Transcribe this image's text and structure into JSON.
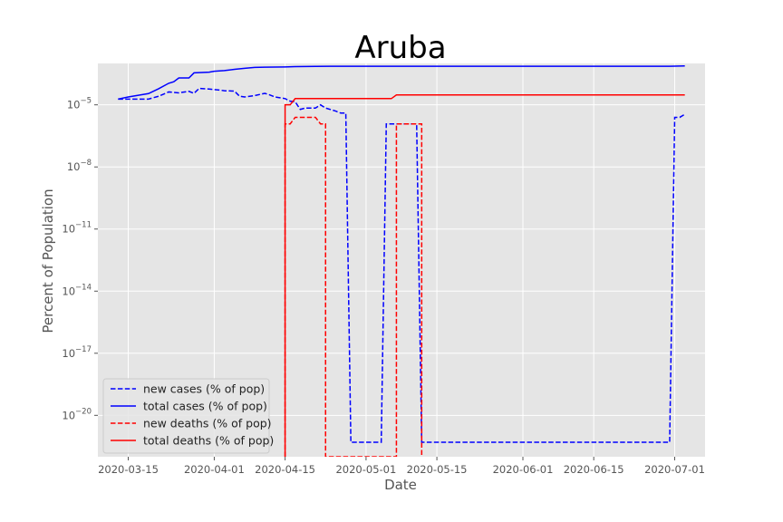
{
  "chart_data": {
    "type": "line",
    "title": "Aruba",
    "xlabel": "Date",
    "ylabel": "Percent of Population",
    "yscale": "log",
    "ylim": [
      1e-22,
      0.001
    ],
    "xlim": [
      "2020-03-09",
      "2020-07-07"
    ],
    "grid": true,
    "style": "ggplot",
    "legend_position": "lower-left",
    "x_ticks": [
      "2020-03-15",
      "2020-04-01",
      "2020-04-15",
      "2020-05-01",
      "2020-05-15",
      "2020-06-01",
      "2020-06-15",
      "2020-07-01"
    ],
    "y_ticks": [
      {
        "value": 1e-20,
        "base": "10",
        "exp": "−20"
      },
      {
        "value": 1e-17,
        "base": "10",
        "exp": "−17"
      },
      {
        "value": 1e-14,
        "base": "10",
        "exp": "−14"
      },
      {
        "value": 1e-11,
        "base": "10",
        "exp": "−11"
      },
      {
        "value": 1e-08,
        "base": "10",
        "exp": "−8"
      },
      {
        "value": 1e-05,
        "base": "10",
        "exp": "−5"
      }
    ],
    "series": [
      {
        "name": "new cases (% of pop)",
        "color": "#0000ff",
        "dash": "dashed",
        "points": [
          [
            "2020-03-13",
            1.9e-05
          ],
          [
            "2020-03-14",
            1.9e-05
          ],
          [
            "2020-03-17",
            1.9e-05
          ],
          [
            "2020-03-19",
            1.9e-05
          ],
          [
            "2020-03-21",
            2.6e-05
          ],
          [
            "2020-03-23",
            4.2e-05
          ],
          [
            "2020-03-25",
            3.8e-05
          ],
          [
            "2020-03-27",
            4.5e-05
          ],
          [
            "2020-03-28",
            3.6e-05
          ],
          [
            "2020-03-29",
            6.2e-05
          ],
          [
            "2020-03-31",
            5.8e-05
          ],
          [
            "2020-04-02",
            5.2e-05
          ],
          [
            "2020-04-03",
            4.8e-05
          ],
          [
            "2020-04-05",
            4.6e-05
          ],
          [
            "2020-04-06",
            2.6e-05
          ],
          [
            "2020-04-07",
            2.4e-05
          ],
          [
            "2020-04-09",
            2.8e-05
          ],
          [
            "2020-04-11",
            3.6e-05
          ],
          [
            "2020-04-12",
            3e-05
          ],
          [
            "2020-04-13",
            2.4e-05
          ],
          [
            "2020-04-15",
            2e-05
          ],
          [
            "2020-04-16",
            1.5e-05
          ],
          [
            "2020-04-17",
            1.4e-05
          ],
          [
            "2020-04-18",
            6e-06
          ],
          [
            "2020-04-19",
            7e-06
          ],
          [
            "2020-04-21",
            7e-06
          ],
          [
            "2020-04-22",
            1e-05
          ],
          [
            "2020-04-23",
            7e-06
          ],
          [
            "2020-04-25",
            5e-06
          ],
          [
            "2020-04-26",
            4e-06
          ],
          [
            "2020-04-27",
            4e-06
          ],
          [
            "2020-04-28",
            5e-22
          ],
          [
            "2020-05-04",
            5e-22
          ],
          [
            "2020-05-05",
            1.2e-06
          ],
          [
            "2020-05-11",
            1.2e-06
          ],
          [
            "2020-05-12",
            5e-22
          ],
          [
            "2020-06-30",
            5e-22
          ],
          [
            "2020-07-01",
            2.5e-06
          ],
          [
            "2020-07-02",
            2.5e-06
          ],
          [
            "2020-07-03",
            3.5e-06
          ]
        ]
      },
      {
        "name": "total cases (% of pop)",
        "color": "#0000ff",
        "dash": "solid",
        "points": [
          [
            "2020-03-13",
            1.9e-05
          ],
          [
            "2020-03-15",
            2.4e-05
          ],
          [
            "2020-03-17",
            2.9e-05
          ],
          [
            "2020-03-19",
            3.5e-05
          ],
          [
            "2020-03-21",
            6e-05
          ],
          [
            "2020-03-23",
            0.00011
          ],
          [
            "2020-03-24",
            0.00013
          ],
          [
            "2020-03-25",
            0.0002
          ],
          [
            "2020-03-27",
            0.0002
          ],
          [
            "2020-03-28",
            0.00035
          ],
          [
            "2020-03-31",
            0.00038
          ],
          [
            "2020-04-01",
            0.00042
          ],
          [
            "2020-04-03",
            0.00045
          ],
          [
            "2020-04-05",
            0.00052
          ],
          [
            "2020-04-07",
            0.00058
          ],
          [
            "2020-04-09",
            0.00064
          ],
          [
            "2020-04-11",
            0.00066
          ],
          [
            "2020-04-15",
            0.00068
          ],
          [
            "2020-04-17",
            0.0007
          ],
          [
            "2020-04-21",
            0.00072
          ],
          [
            "2020-04-24",
            0.00073
          ],
          [
            "2020-05-15",
            0.00073
          ],
          [
            "2020-06-30",
            0.00073
          ],
          [
            "2020-07-03",
            0.00076
          ]
        ]
      },
      {
        "name": "new deaths (% of pop)",
        "color": "#ff0000",
        "dash": "dashed",
        "points": [
          [
            "2020-04-15",
            1e-22
          ],
          [
            "2020-04-15",
            1.2e-06
          ],
          [
            "2020-04-16",
            1.2e-06
          ],
          [
            "2020-04-17",
            2.5e-06
          ],
          [
            "2020-04-21",
            2.5e-06
          ],
          [
            "2020-04-22",
            1.2e-06
          ],
          [
            "2020-04-23",
            1.2e-06
          ],
          [
            "2020-04-23",
            1e-22
          ],
          [
            "2020-05-07",
            1e-22
          ],
          [
            "2020-05-07",
            1.2e-06
          ],
          [
            "2020-05-12",
            1.2e-06
          ],
          [
            "2020-05-12",
            1e-22
          ]
        ]
      },
      {
        "name": "total deaths (% of pop)",
        "color": "#ff0000",
        "dash": "solid",
        "points": [
          [
            "2020-04-15",
            1e-22
          ],
          [
            "2020-04-15",
            1e-05
          ],
          [
            "2020-04-16",
            1e-05
          ],
          [
            "2020-04-17",
            2e-05
          ],
          [
            "2020-05-06",
            2e-05
          ],
          [
            "2020-05-07",
            3e-05
          ],
          [
            "2020-07-03",
            3e-05
          ]
        ]
      }
    ]
  }
}
